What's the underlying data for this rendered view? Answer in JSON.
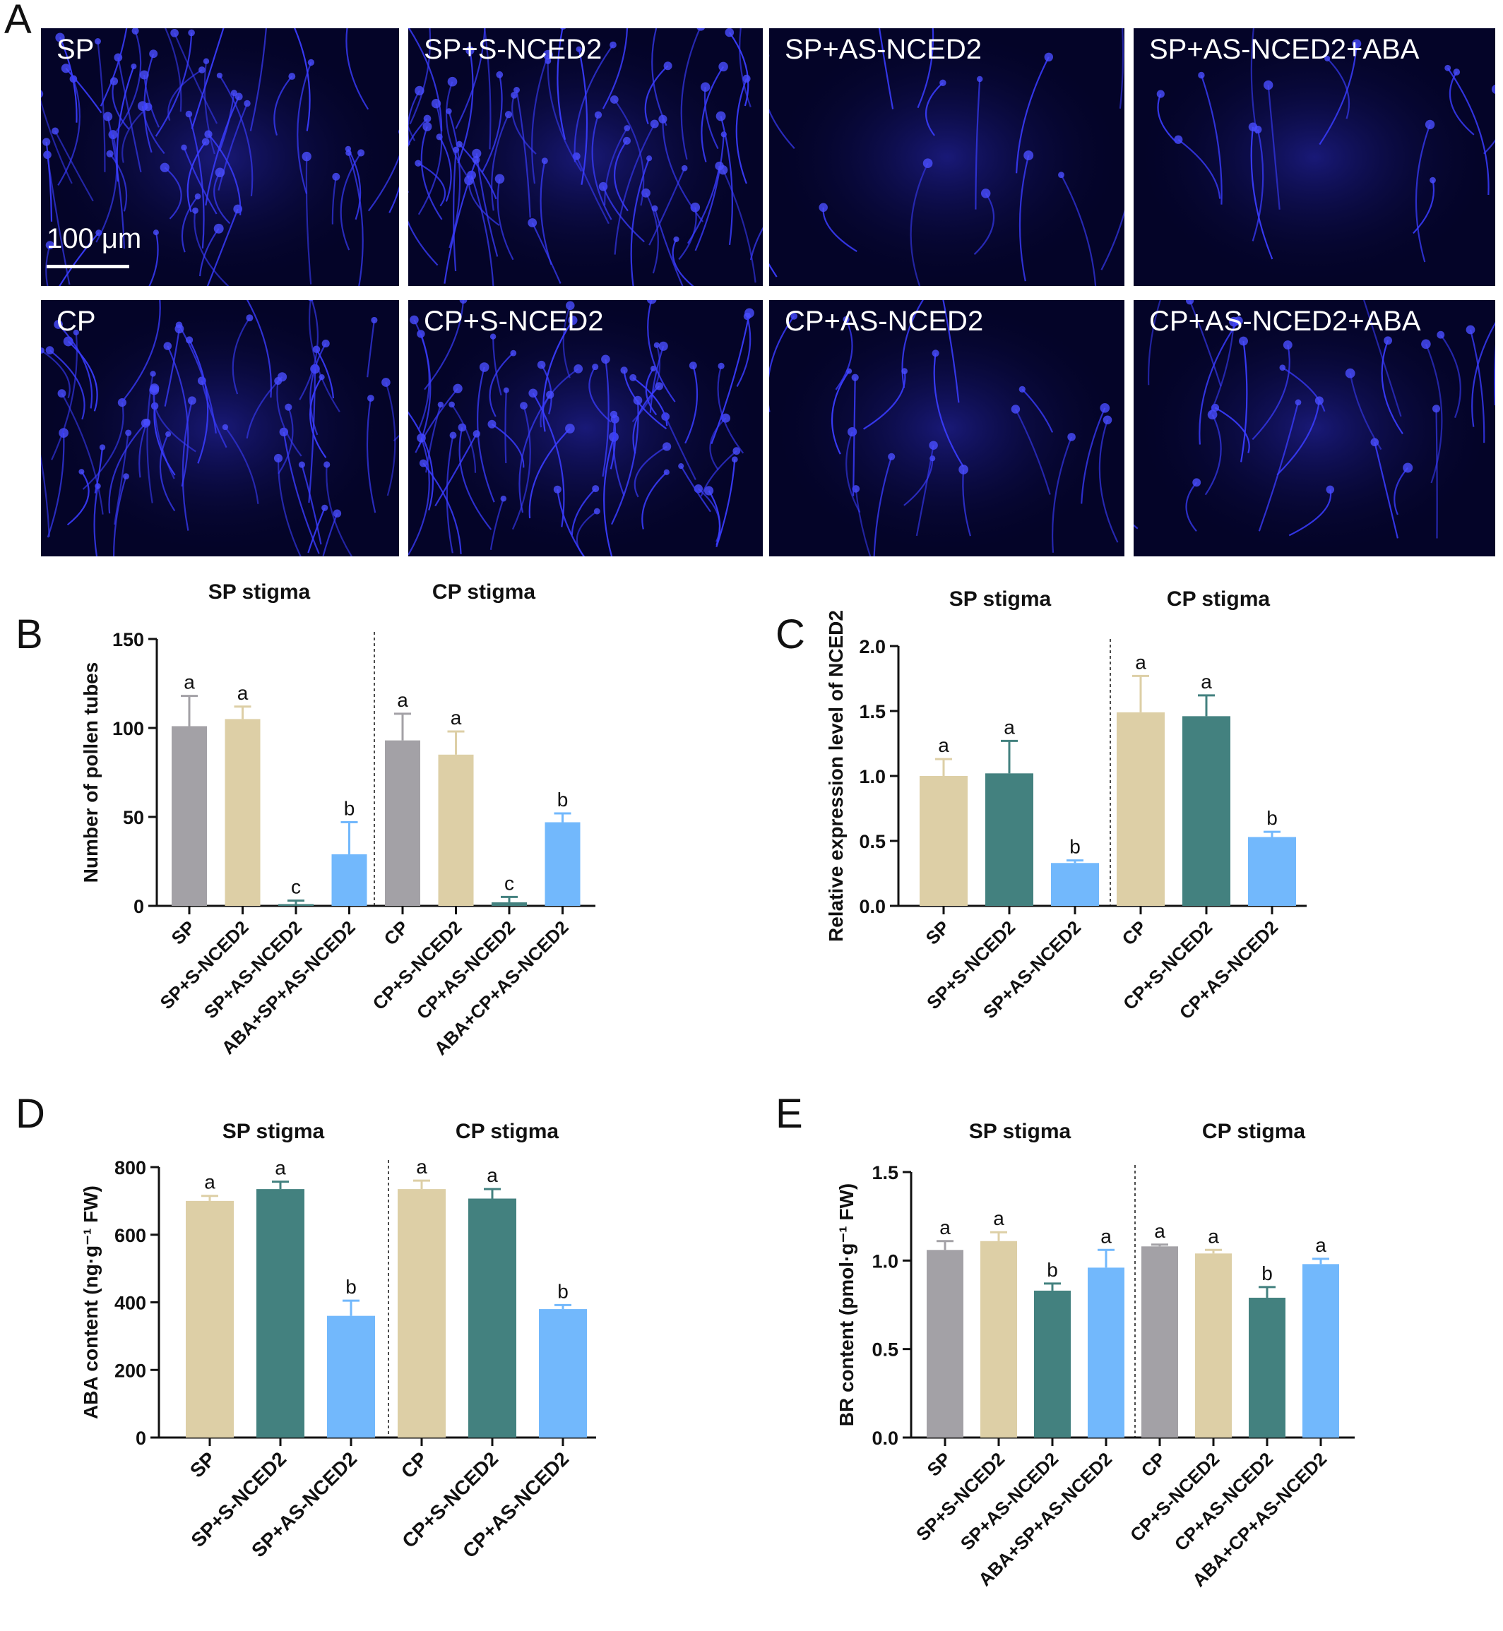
{
  "panel_A": {
    "letter": "A",
    "scale_bar_label": "100 μm",
    "images": [
      {
        "label": "SP"
      },
      {
        "label": "SP+S-NCED2"
      },
      {
        "label": "SP+AS-NCED2"
      },
      {
        "label": "SP+AS-NCED2+ABA"
      },
      {
        "label": "CP"
      },
      {
        "label": "CP+S-NCED2"
      },
      {
        "label": "CP+AS-NCED2"
      },
      {
        "label": "CP+AS-NCED2+ABA"
      }
    ]
  },
  "colors": {
    "gray": "#A3A1A6",
    "beige": "#DDCFA6",
    "teal": "#43817F",
    "lightblue": "#72B8FC",
    "errorbar_gray": "#A3A1A6",
    "dark": "#111111"
  },
  "chart_data": [
    {
      "panel": "B",
      "type": "bar",
      "ylabel": "Number of pollen tubes",
      "ylim": [
        0,
        150
      ],
      "yticks": [
        0,
        50,
        100,
        150
      ],
      "groups": [
        "SP stigma",
        "CP stigma"
      ],
      "categories": [
        "SP",
        "SP+S-NCED2",
        "SP+AS-NCED2",
        "ABA+SP+AS-NCED2",
        "CP",
        "CP+S-NCED2",
        "CP+AS-NCED2",
        "ABA+CP+AS-NCED2"
      ],
      "values": [
        101,
        105,
        1,
        29,
        93,
        85,
        2,
        47
      ],
      "errors": [
        17,
        7,
        2,
        18,
        15,
        13,
        3,
        5
      ],
      "letters": [
        "a",
        "a",
        "c",
        "b",
        "a",
        "a",
        "c",
        "b"
      ],
      "colors": [
        "gray",
        "beige",
        "teal",
        "lightblue",
        "gray",
        "beige",
        "teal",
        "lightblue"
      ]
    },
    {
      "panel": "C",
      "type": "bar",
      "ylabel": "Relative expression level of NCED2",
      "ylim": [
        0,
        2.0
      ],
      "yticks": [
        "0.0",
        "0.5",
        "1.0",
        "1.5",
        "2.0"
      ],
      "groups": [
        "SP stigma",
        "CP stigma"
      ],
      "categories": [
        "SP",
        "SP+S-NCED2",
        "SP+AS-NCED2",
        "CP",
        "CP+S-NCED2",
        "CP+AS-NCED2"
      ],
      "values": [
        1.0,
        1.02,
        0.33,
        1.49,
        1.46,
        0.53
      ],
      "errors": [
        0.13,
        0.25,
        0.02,
        0.28,
        0.16,
        0.04
      ],
      "letters": [
        "a",
        "a",
        "b",
        "a",
        "a",
        "b"
      ],
      "colors": [
        "beige",
        "teal",
        "lightblue",
        "beige",
        "teal",
        "lightblue"
      ]
    },
    {
      "panel": "D",
      "type": "bar",
      "ylabel": "ABA content (ng·g⁻¹ FW)",
      "ylim": [
        0,
        800
      ],
      "yticks": [
        0,
        200,
        400,
        600,
        800
      ],
      "groups": [
        "SP stigma",
        "CP stigma"
      ],
      "categories": [
        "SP",
        "SP+S-NCED2",
        "SP+AS-NCED2",
        "CP",
        "CP+S-NCED2",
        "CP+AS-NCED2"
      ],
      "values": [
        700,
        735,
        360,
        735,
        707,
        380
      ],
      "errors": [
        15,
        22,
        45,
        25,
        28,
        12
      ],
      "letters": [
        "a",
        "a",
        "b",
        "a",
        "a",
        "b"
      ],
      "colors": [
        "beige",
        "teal",
        "lightblue",
        "beige",
        "teal",
        "lightblue"
      ]
    },
    {
      "panel": "E",
      "type": "bar",
      "ylabel": "BR content (pmol·g⁻¹ FW)",
      "ylim": [
        0,
        1.5
      ],
      "yticks": [
        "0.0",
        "0.5",
        "1.0",
        "1.5"
      ],
      "groups": [
        "SP stigma",
        "CP stigma"
      ],
      "categories": [
        "SP",
        "SP+S-NCED2",
        "SP+AS-NCED2",
        "ABA+SP+AS-NCED2",
        "CP",
        "CP+S-NCED2",
        "CP+AS-NCED2",
        "ABA+CP+AS-NCED2"
      ],
      "values": [
        1.06,
        1.11,
        0.83,
        0.96,
        1.08,
        1.04,
        0.79,
        0.98
      ],
      "errors": [
        0.05,
        0.05,
        0.04,
        0.1,
        0.01,
        0.02,
        0.06,
        0.03
      ],
      "letters": [
        "a",
        "a",
        "b",
        "a",
        "a",
        "a",
        "b",
        "a"
      ],
      "colors": [
        "gray",
        "beige",
        "teal",
        "lightblue",
        "gray",
        "beige",
        "teal",
        "lightblue"
      ]
    }
  ]
}
